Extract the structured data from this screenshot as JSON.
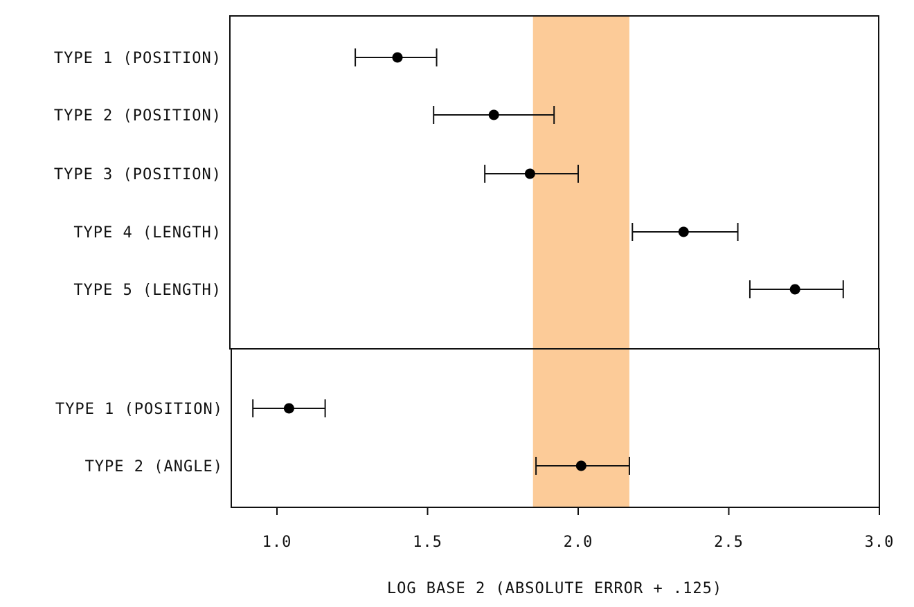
{
  "chart_data": {
    "type": "scatter",
    "title": "",
    "xlabel": "LOG BASE 2 (ABSOLUTE ERROR + .125)",
    "ylabel": "",
    "xlim": [
      0.85,
      3.0
    ],
    "xticks": [
      1.0,
      1.5,
      2.0,
      2.5,
      3.0
    ],
    "xtick_labels": [
      "1.0",
      "1.5",
      "2.0",
      "2.5",
      "3.0"
    ],
    "grid": false,
    "band": {
      "from": 1.85,
      "to": 2.17,
      "color": "#fccb98"
    },
    "point_color": "#000000",
    "panels": [
      {
        "rows": [
          {
            "label": "TYPE 1 (POSITION)",
            "value": 1.4,
            "low": 1.26,
            "high": 1.53
          },
          {
            "label": "TYPE 2 (POSITION)",
            "value": 1.72,
            "low": 1.52,
            "high": 1.92
          },
          {
            "label": "TYPE 3 (POSITION)",
            "value": 1.84,
            "low": 1.69,
            "high": 2.0
          },
          {
            "label": "TYPE 4 (LENGTH)",
            "value": 2.35,
            "low": 2.18,
            "high": 2.53
          },
          {
            "label": "TYPE 5 (LENGTH)",
            "value": 2.72,
            "low": 2.57,
            "high": 2.88
          }
        ]
      },
      {
        "rows": [
          {
            "label": "TYPE 1 (POSITION)",
            "value": 1.04,
            "low": 0.92,
            "high": 1.16
          },
          {
            "label": "TYPE 2 (ANGLE)",
            "value": 2.01,
            "low": 1.86,
            "high": 2.17
          }
        ]
      }
    ]
  }
}
